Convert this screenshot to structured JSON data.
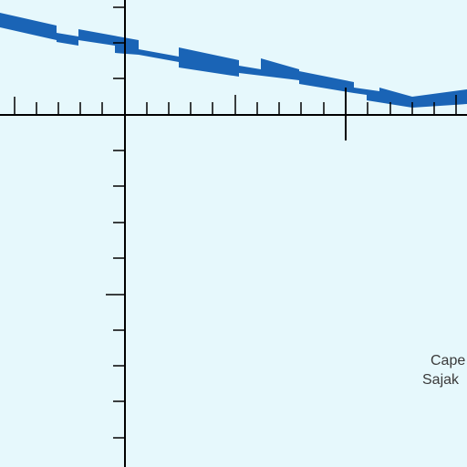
{
  "map": {
    "background": "#e6f8fc",
    "route_color": "#1a64b6",
    "graticule_color": "#000000",
    "place_label": {
      "line1": "Cape",
      "line2": "Sajak"
    }
  }
}
